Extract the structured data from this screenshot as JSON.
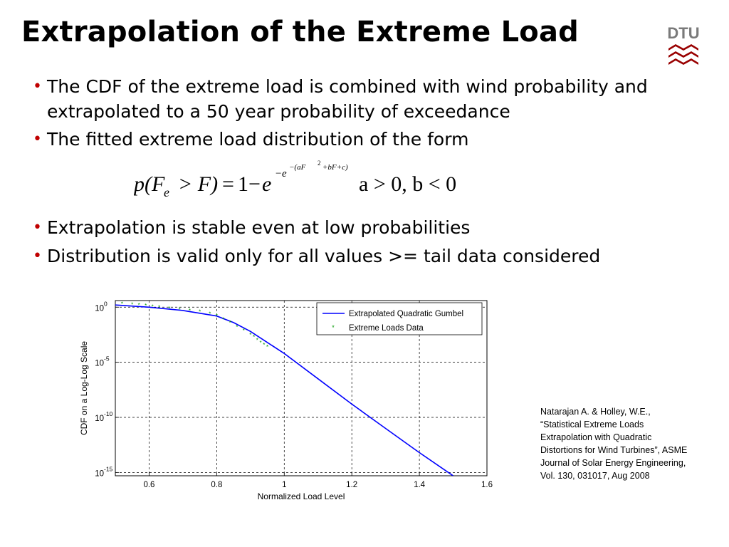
{
  "slide": {
    "title": "Extrapolation of the Extreme Load",
    "logo_text": "DTU",
    "bullets": [
      "The CDF of the extreme load is combined with wind probability and extrapolated to a 50 year probability of exceedance",
      "The fitted extreme load distribution of the form",
      "Extrapolation is stable even at low probabilities",
      "Distribution is valid only for all values >= tail data considered"
    ],
    "formula": {
      "lhs": "p(F",
      "sub": "e",
      "gt": "> F)",
      "eq": "=",
      "one_minus": "1−",
      "e1": "e",
      "exp_minus": "−",
      "exp_e": "e",
      "exp_inner": "−(aF",
      "exp_sq": "2",
      "exp_rest": "+bF+c)",
      "condition": "a > 0, b < 0"
    },
    "citation": [
      "Natarajan A. & Holley, W.E.,",
      "“Statistical Extreme Loads",
      "Extrapolation with Quadratic",
      "Distortions for Wind Turbines”, ASME",
      "Journal of Solar Energy Engineering,",
      "Vol. 130, 031017, Aug 2008"
    ]
  },
  "colors": {
    "bullet": "#c00000",
    "fit_line": "#0000ff",
    "data_points": "#009900",
    "logo": "#990000"
  },
  "chart_data": {
    "type": "line",
    "xlabel": "Normalized Load Level",
    "ylabel": "CDF on a Log-Log Scale",
    "xlim": [
      0.5,
      1.6
    ],
    "ylim_exponent": [
      -15,
      0
    ],
    "x_ticks": [
      0.6,
      0.8,
      1,
      1.2,
      1.4,
      1.6
    ],
    "x_tick_labels": [
      "0.6",
      "0.8",
      "1",
      "1.2",
      "1.4",
      "1.6"
    ],
    "y_tick_base": "10",
    "y_tick_exponents": [
      "0",
      "-5",
      "-10",
      "-15"
    ],
    "y_tick_values": [
      0,
      -5,
      -10,
      -15
    ],
    "grid": true,
    "legend_position": "top-right",
    "series": [
      {
        "name": "Extrapolated Quadratic Gumbel",
        "style": "line",
        "x": [
          0.5,
          0.6,
          0.7,
          0.8,
          0.85,
          0.9,
          0.95,
          1.0,
          1.1,
          1.2,
          1.3,
          1.4,
          1.5
        ],
        "log10_y": [
          0.2,
          0.0,
          -0.3,
          -0.8,
          -1.4,
          -2.2,
          -3.2,
          -4.2,
          -6.5,
          -8.8,
          -11.0,
          -13.2,
          -15.3
        ]
      },
      {
        "name": "Extreme Loads Data",
        "style": "markers",
        "x": [
          0.52,
          0.55,
          0.57,
          0.59,
          0.61,
          0.63,
          0.66,
          0.69,
          0.72,
          0.75,
          0.78,
          0.8,
          0.82,
          0.84,
          0.86,
          0.88,
          0.9,
          0.91,
          0.92,
          0.93,
          0.94,
          0.95
        ],
        "log10_y": [
          0.3,
          0.25,
          0.2,
          0.15,
          0.05,
          -0.02,
          -0.1,
          -0.2,
          -0.3,
          -0.4,
          -0.6,
          -0.8,
          -1.1,
          -1.4,
          -1.8,
          -2.1,
          -2.5,
          -2.7,
          -3.0,
          -3.2,
          -3.4,
          -3.6
        ]
      }
    ]
  }
}
